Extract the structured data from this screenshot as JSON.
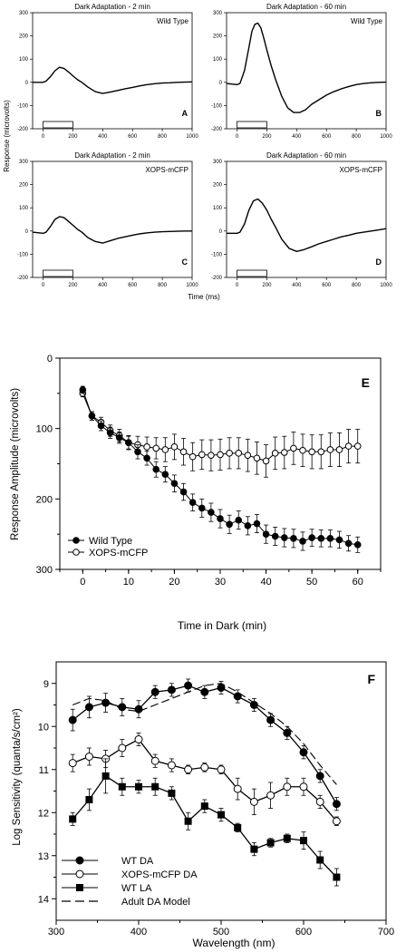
{
  "top_panels": {
    "ylabel": "Response (microvolts)",
    "xlabel": "Time (ms)",
    "xticks": [
      0,
      200,
      400,
      600,
      800,
      1000
    ],
    "yticks": [
      -200,
      -100,
      0,
      100,
      200,
      300
    ]
  },
  "bottom_panel_e": {
    "ylabel": "Response Amplitude (microvolts)",
    "xlabel": "Time in Dark (min)"
  },
  "bottom_panel_f": {
    "ylabel": "Log Sensitivity (quanta/s/cm²)",
    "xlabel": "Wavelength (nm)"
  },
  "chart_data": [
    {
      "type": "line",
      "letter": "A",
      "title": "Dark Adaptation - 2 min",
      "corner_label": "Wild Type",
      "xlim": [
        0,
        1000
      ],
      "ylim": [
        -200,
        300
      ],
      "series": [
        {
          "x": [
            -70,
            0,
            20,
            50,
            80,
            110,
            140,
            170,
            200,
            230,
            260,
            300,
            350,
            400,
            450,
            500,
            550,
            600,
            650,
            700,
            750,
            800,
            850,
            900,
            950,
            1000
          ],
          "y": [
            0,
            0,
            5,
            25,
            50,
            65,
            60,
            45,
            28,
            12,
            0,
            -20,
            -40,
            -48,
            -42,
            -35,
            -28,
            -22,
            -15,
            -10,
            -6,
            -3,
            -2,
            0,
            1,
            2
          ]
        }
      ],
      "stimulus": [
        0,
        200
      ]
    },
    {
      "type": "line",
      "letter": "B",
      "title": "Dark Adaptation - 60 min",
      "corner_label": "Wild Type",
      "xlim": [
        0,
        1000
      ],
      "ylim": [
        -200,
        300
      ],
      "series": [
        {
          "x": [
            -70,
            0,
            20,
            50,
            80,
            100,
            120,
            140,
            160,
            180,
            200,
            230,
            260,
            300,
            340,
            380,
            420,
            460,
            500,
            550,
            600,
            650,
            700,
            750,
            800,
            850,
            900,
            950,
            1000
          ],
          "y": [
            -5,
            -10,
            -5,
            50,
            150,
            220,
            250,
            255,
            235,
            190,
            140,
            70,
            10,
            -60,
            -110,
            -130,
            -130,
            -118,
            -95,
            -75,
            -55,
            -40,
            -28,
            -18,
            -10,
            -5,
            -2,
            0,
            1
          ]
        }
      ],
      "stimulus": [
        0,
        200
      ]
    },
    {
      "type": "line",
      "letter": "C",
      "title": "Dark Adaptation - 2 min",
      "corner_label": "XOPS-mCFP",
      "xlim": [
        0,
        1000
      ],
      "ylim": [
        -200,
        300
      ],
      "series": [
        {
          "x": [
            -70,
            0,
            20,
            50,
            80,
            110,
            140,
            170,
            200,
            230,
            260,
            300,
            350,
            400,
            450,
            500,
            550,
            600,
            650,
            700,
            750,
            800,
            850,
            900,
            950,
            1000
          ],
          "y": [
            -5,
            -10,
            -5,
            20,
            50,
            62,
            58,
            42,
            25,
            8,
            -5,
            -28,
            -45,
            -52,
            -42,
            -32,
            -25,
            -18,
            -12,
            -8,
            -5,
            -3,
            -2,
            -1,
            0,
            0
          ]
        }
      ],
      "stimulus": [
        0,
        200
      ]
    },
    {
      "type": "line",
      "letter": "D",
      "title": "Dark Adaptation - 60 min",
      "corner_label": "XOPS-mCFP",
      "xlim": [
        0,
        1000
      ],
      "ylim": [
        -200,
        300
      ],
      "series": [
        {
          "x": [
            -70,
            0,
            20,
            50,
            80,
            110,
            140,
            170,
            200,
            230,
            260,
            300,
            350,
            400,
            450,
            500,
            550,
            600,
            650,
            700,
            750,
            800,
            850,
            900,
            950,
            1000
          ],
          "y": [
            -10,
            -10,
            -5,
            30,
            90,
            130,
            138,
            120,
            90,
            50,
            15,
            -35,
            -75,
            -88,
            -80,
            -68,
            -55,
            -45,
            -35,
            -25,
            -18,
            -10,
            -5,
            0,
            5,
            10
          ]
        }
      ],
      "stimulus": [
        0,
        200
      ]
    },
    {
      "type": "scatter",
      "letter": "E",
      "xlim": [
        -5,
        65
      ],
      "ylim": [
        300,
        0
      ],
      "y_inverted": true,
      "xticks": [
        0,
        10,
        20,
        30,
        40,
        50,
        60
      ],
      "yticks": [
        0,
        100,
        200,
        300
      ],
      "legend_position": "bottom-left",
      "x": [
        0,
        2,
        4,
        6,
        8,
        10,
        12,
        14,
        16,
        18,
        20,
        22,
        24,
        26,
        28,
        30,
        32,
        34,
        36,
        38,
        40,
        42,
        44,
        46,
        48,
        50,
        52,
        54,
        56,
        58,
        60
      ],
      "series": [
        {
          "name": "Wild Type",
          "marker": "filled-circle",
          "y": [
            45,
            82,
            96,
            106,
            113,
            120,
            133,
            142,
            158,
            165,
            178,
            190,
            205,
            213,
            219,
            228,
            236,
            230,
            238,
            235,
            250,
            253,
            255,
            256,
            260,
            255,
            256,
            256,
            258,
            263,
            265
          ],
          "err": [
            5,
            6,
            7,
            8,
            8,
            9,
            10,
            10,
            11,
            11,
            12,
            12,
            12,
            13,
            13,
            13,
            13,
            13,
            13,
            13,
            13,
            13,
            13,
            13,
            13,
            12,
            12,
            12,
            12,
            11,
            11
          ]
        },
        {
          "name": "XOPS-mCFP",
          "marker": "open-circle",
          "y": [
            50,
            82,
            91,
            103,
            110,
            120,
            123,
            126,
            128,
            130,
            126,
            133,
            140,
            137,
            138,
            137,
            135,
            135,
            138,
            142,
            146,
            135,
            134,
            128,
            131,
            133,
            133,
            130,
            130,
            125,
            125
          ],
          "err": [
            5,
            6,
            7,
            8,
            9,
            10,
            12,
            14,
            15,
            17,
            18,
            19,
            20,
            21,
            22,
            22,
            22,
            22,
            23,
            23,
            23,
            23,
            23,
            23,
            23,
            24,
            24,
            24,
            24,
            24,
            24
          ]
        }
      ]
    },
    {
      "type": "line",
      "letter": "F",
      "xlim": [
        300,
        700
      ],
      "ylim": [
        14.5,
        8.5
      ],
      "y_inverted": true,
      "xticks": [
        300,
        400,
        500,
        600,
        700
      ],
      "yticks": [
        9,
        10,
        11,
        12,
        13,
        14
      ],
      "legend_position": "bottom-left",
      "series": [
        {
          "name": "WT DA",
          "marker": "filled-circle",
          "x": [
            320,
            340,
            360,
            380,
            400,
            420,
            440,
            460,
            480,
            500,
            520,
            540,
            560,
            580,
            600,
            620,
            640
          ],
          "y": [
            9.85,
            9.55,
            9.45,
            9.55,
            9.6,
            9.2,
            9.15,
            9.05,
            9.2,
            9.1,
            9.3,
            9.5,
            9.85,
            10.15,
            10.6,
            11.15,
            11.8
          ],
          "err": [
            0.25,
            0.25,
            0.22,
            0.2,
            0.2,
            0.15,
            0.15,
            0.15,
            0.15,
            0.15,
            0.15,
            0.15,
            0.15,
            0.15,
            0.15,
            0.15,
            0.15
          ]
        },
        {
          "name": "XOPS-mCFP DA",
          "marker": "open-circle",
          "x": [
            320,
            340,
            360,
            380,
            400,
            420,
            440,
            460,
            480,
            500,
            520,
            540,
            560,
            580,
            600,
            620,
            640
          ],
          "y": [
            10.85,
            10.7,
            10.75,
            10.5,
            10.3,
            10.8,
            10.9,
            11.0,
            10.95,
            11.0,
            11.45,
            11.75,
            11.6,
            11.4,
            11.4,
            11.75,
            12.2
          ],
          "err": [
            0.2,
            0.2,
            0.2,
            0.2,
            0.15,
            0.15,
            0.15,
            0.1,
            0.1,
            0.1,
            0.25,
            0.3,
            0.3,
            0.2,
            0.2,
            0.15,
            0.1
          ]
        },
        {
          "name": "WT LA",
          "marker": "filled-square",
          "x": [
            320,
            340,
            360,
            380,
            400,
            420,
            440,
            460,
            480,
            500,
            520,
            540,
            560,
            580,
            600,
            620,
            640
          ],
          "y": [
            12.15,
            11.7,
            11.15,
            11.4,
            11.4,
            11.4,
            11.55,
            12.2,
            11.85,
            12.05,
            12.35,
            12.85,
            12.7,
            12.6,
            12.65,
            13.1,
            13.5
          ],
          "err": [
            0.15,
            0.25,
            0.4,
            0.2,
            0.15,
            0.2,
            0.15,
            0.2,
            0.15,
            0.15,
            0.1,
            0.15,
            0.1,
            0.1,
            0.2,
            0.2,
            0.2
          ]
        },
        {
          "name": "Adult DA Model",
          "marker": "dashed",
          "x": [
            320,
            340,
            360,
            380,
            400,
            420,
            440,
            460,
            480,
            500,
            520,
            540,
            560,
            580,
            600,
            620,
            640
          ],
          "y": [
            9.5,
            9.35,
            9.4,
            9.6,
            9.65,
            9.5,
            9.35,
            9.2,
            9.05,
            9.0,
            9.2,
            9.45,
            9.7,
            10.0,
            10.4,
            10.9,
            11.35
          ]
        }
      ]
    }
  ]
}
